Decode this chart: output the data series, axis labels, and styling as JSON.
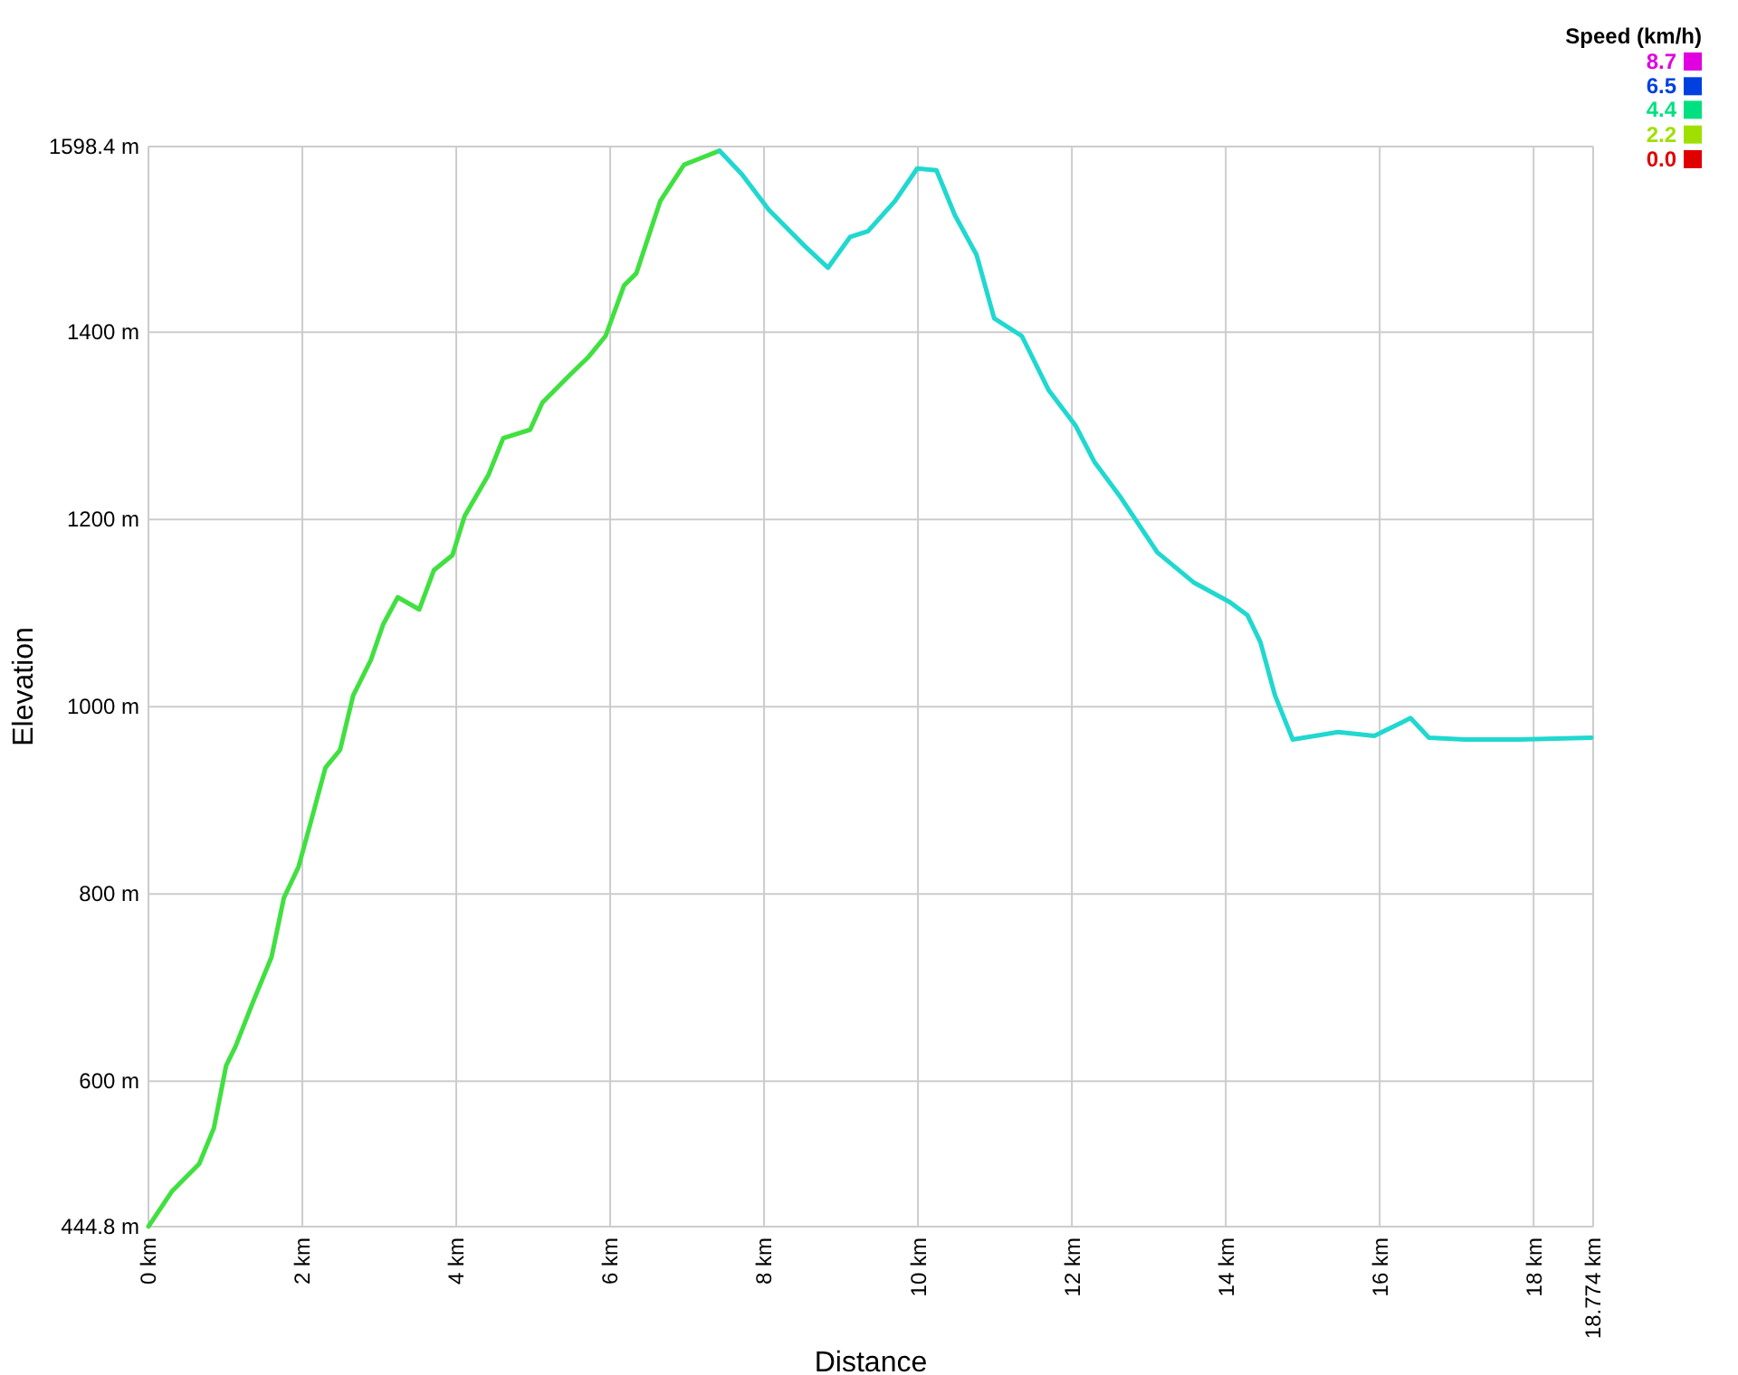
{
  "chart_data": {
    "type": "line",
    "xlabel": "Distance",
    "ylabel": "Elevation",
    "clabel": "Speed (km/h)",
    "xlim": [
      0,
      18.774
    ],
    "ylim": [
      444.8,
      1598.4
    ],
    "xticks": [
      {
        "value": 0,
        "label": "0 km"
      },
      {
        "value": 2,
        "label": "2 km"
      },
      {
        "value": 4,
        "label": "4 km"
      },
      {
        "value": 6,
        "label": "6 km"
      },
      {
        "value": 8,
        "label": "8 km"
      },
      {
        "value": 10,
        "label": "10 km"
      },
      {
        "value": 12,
        "label": "12 km"
      },
      {
        "value": 14,
        "label": "14 km"
      },
      {
        "value": 16,
        "label": "16 km"
      },
      {
        "value": 18,
        "label": "18 km"
      },
      {
        "value": 18.774,
        "label": "18.774 km"
      }
    ],
    "yticks": [
      {
        "value": 444.8,
        "label": "444.8 m"
      },
      {
        "value": 600,
        "label": "600 m"
      },
      {
        "value": 800,
        "label": "800 m"
      },
      {
        "value": 1000,
        "label": "1000 m"
      },
      {
        "value": 1200,
        "label": "1200 m"
      },
      {
        "value": 1400,
        "label": "1400 m"
      },
      {
        "value": 1598.4,
        "label": "1598.4 m"
      }
    ],
    "cticks": [
      {
        "value": 0,
        "label": "0.0"
      },
      {
        "value": 2.2,
        "label": "2.2"
      },
      {
        "value": 4.4,
        "label": "4.4"
      },
      {
        "value": 6.5,
        "label": "6.5"
      },
      {
        "value": 8.7,
        "label": "8.7"
      }
    ],
    "colors": [
      "#e00000",
      "#a0e000",
      "#00e080",
      "#0040e0",
      "#e000e0"
    ],
    "grid": true,
    "x": [
      0,
      0.31,
      0.66,
      0.85,
      1.01,
      1.13,
      1.36,
      1.6,
      1.76,
      1.95,
      2.11,
      2.3,
      2.49,
      2.66,
      2.89,
      3.05,
      3.24,
      3.52,
      3.71,
      3.95,
      4.11,
      4.42,
      4.61,
      4.96,
      5.12,
      5.47,
      5.71,
      5.94,
      6.18,
      6.34,
      6.65,
      6.96,
      7.42,
      7.71,
      8.06,
      8.53,
      8.83,
      9.12,
      9.35,
      9.7,
      9.99,
      10.24,
      10.48,
      10.76,
      10.99,
      11.35,
      11.7,
      12.05,
      12.29,
      12.64,
      13.11,
      13.58,
      14.05,
      14.28,
      14.45,
      14.64,
      14.87,
      15.46,
      15.93,
      16.28,
      16.4,
      16.64,
      17.11,
      17.81,
      18.75
    ],
    "series": [
      {
        "color": "#40e040",
        "values": [
          445,
          483,
          512,
          550,
          617,
          637,
          685,
          733,
          796,
          829,
          877,
          935,
          954,
          1012,
          1050,
          1088,
          1117,
          1104,
          1146,
          1162,
          1204,
          1248,
          1287,
          1296,
          1325,
          1354,
          1373,
          1396,
          1450,
          1463,
          1540,
          1579,
          1594,
          null,
          null,
          null,
          null,
          null,
          null,
          null,
          null,
          null,
          null,
          null,
          null,
          null,
          null,
          null,
          null,
          null,
          null,
          null,
          null,
          null,
          null,
          null,
          null,
          null,
          null,
          null,
          null,
          null,
          null,
          null,
          null
        ]
      },
      {
        "color": "#20d8d0",
        "values": [
          null,
          null,
          null,
          null,
          null,
          null,
          null,
          null,
          null,
          null,
          null,
          null,
          null,
          null,
          null,
          null,
          null,
          null,
          null,
          null,
          null,
          null,
          null,
          null,
          null,
          null,
          null,
          null,
          null,
          null,
          null,
          null,
          1594,
          1569,
          1531,
          1492,
          1469,
          1502,
          1508,
          1540,
          1575,
          1573,
          1525,
          1483,
          1415,
          1396,
          1338,
          1300,
          1262,
          1223,
          1165,
          1133,
          1112,
          1098,
          1069,
          1012,
          965,
          973,
          969,
          983,
          988,
          967,
          965,
          965,
          967
        ]
      }
    ]
  }
}
